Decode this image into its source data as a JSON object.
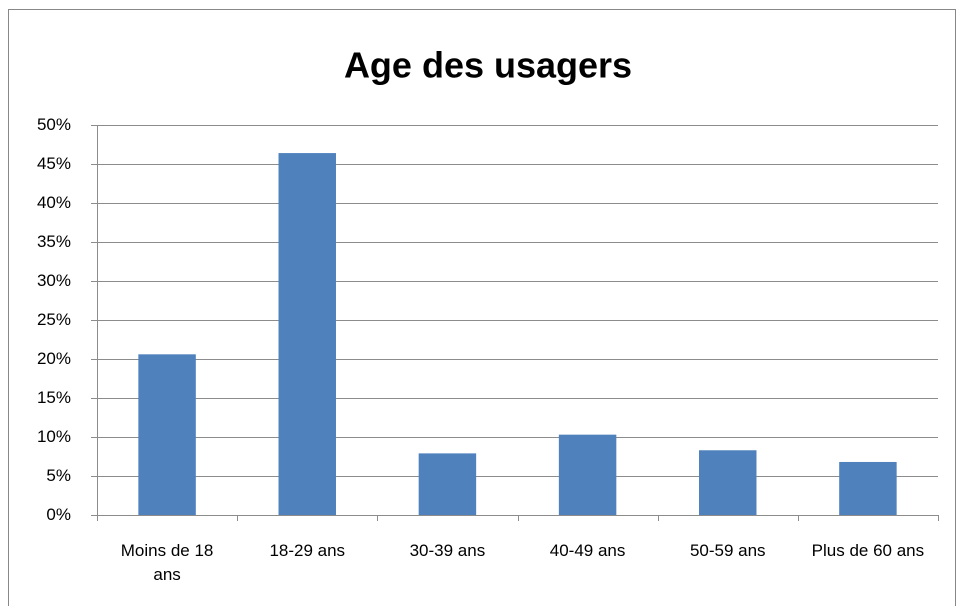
{
  "chart_data": {
    "type": "bar",
    "title": "Age des usagers",
    "categories": [
      "Moins de 18 ans",
      "18-29 ans",
      "30-39 ans",
      "40-49 ans",
      "50-59 ans",
      "Plus de 60 ans"
    ],
    "values": [
      20.6,
      46.4,
      7.9,
      10.3,
      8.3,
      6.8
    ],
    "color": "#4f81bd",
    "ylim": [
      0,
      50
    ],
    "yticks": [
      {
        "value": 0,
        "label": "0%"
      },
      {
        "value": 5,
        "label": "5%"
      },
      {
        "value": 10,
        "label": "10%"
      },
      {
        "value": 15,
        "label": "15%"
      },
      {
        "value": 20,
        "label": "20%"
      },
      {
        "value": 25,
        "label": "25%"
      },
      {
        "value": 30,
        "label": "30%"
      },
      {
        "value": 35,
        "label": "35%"
      },
      {
        "value": 40,
        "label": "40%"
      },
      {
        "value": 45,
        "label": "45%"
      },
      {
        "value": 50,
        "label": "50%"
      }
    ],
    "grid": true
  }
}
